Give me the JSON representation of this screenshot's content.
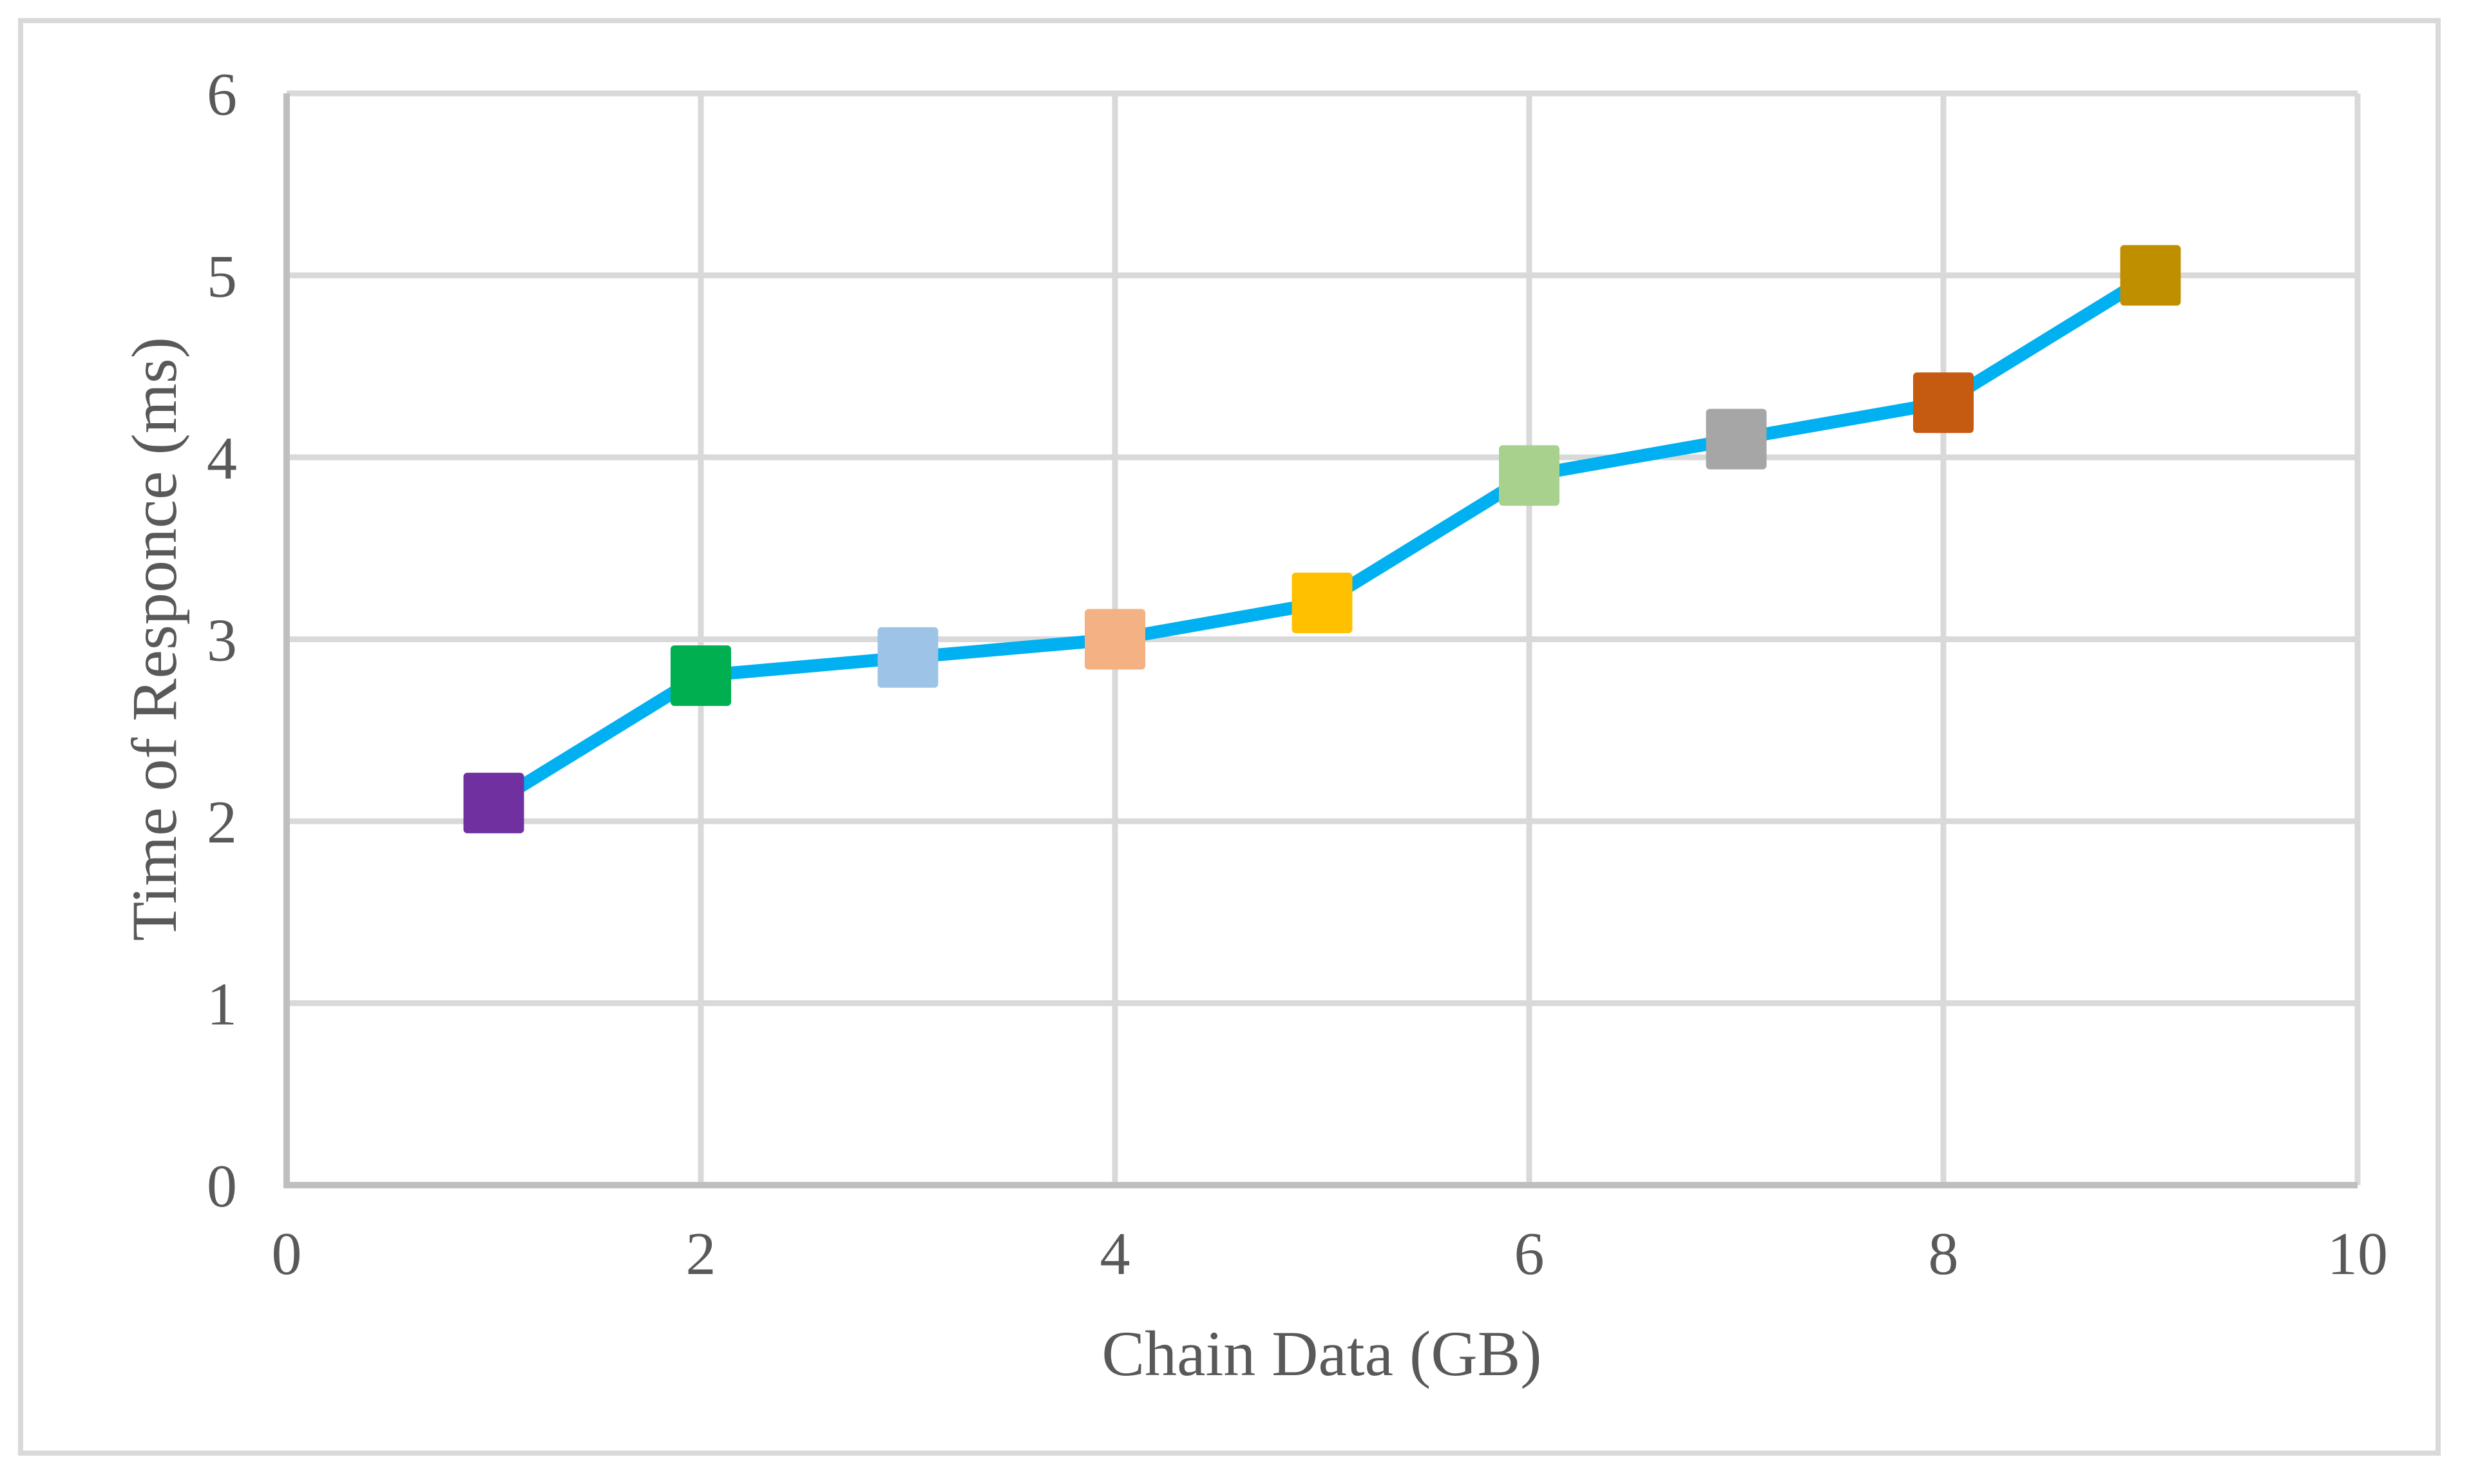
{
  "figure": {
    "background": "#FFFFFF",
    "border_color": "#D9D9D9"
  },
  "chart_data": {
    "type": "line",
    "title": "",
    "xlabel": "Chain Data (GB)",
    "ylabel": "Time of Responce (ms)",
    "x": [
      1,
      2,
      3,
      4,
      5,
      6,
      7,
      8,
      9
    ],
    "y": [
      2.1,
      2.8,
      2.9,
      3.0,
      3.2,
      3.9,
      4.1,
      4.3,
      5.0
    ],
    "xlim": [
      0,
      10
    ],
    "ylim": [
      0,
      6
    ],
    "x_tick_values": [
      0,
      2,
      4,
      6,
      8,
      10
    ],
    "x_tick_labels": [
      "0",
      "2",
      "4",
      "6",
      "8",
      "10"
    ],
    "y_tick_values": [
      0,
      1,
      2,
      3,
      4,
      5,
      6
    ],
    "y_tick_labels": [
      "0",
      "1",
      "2",
      "3",
      "4",
      "5",
      "6"
    ],
    "grid": true,
    "legend": false,
    "line_color": "#00B0F0",
    "marker_shape": "square",
    "point_colors": [
      "#7030A0",
      "#00B050",
      "#9DC3E6",
      "#F4B183",
      "#FFC000",
      "#A9D18E",
      "#A6A6A6",
      "#C55A11",
      "#BF8F00"
    ],
    "gridline_color": "#D9D9D9",
    "axis_line_color": "#BFBFBF",
    "tick_label_color": "#595959",
    "axis_title_color": "#595959"
  }
}
